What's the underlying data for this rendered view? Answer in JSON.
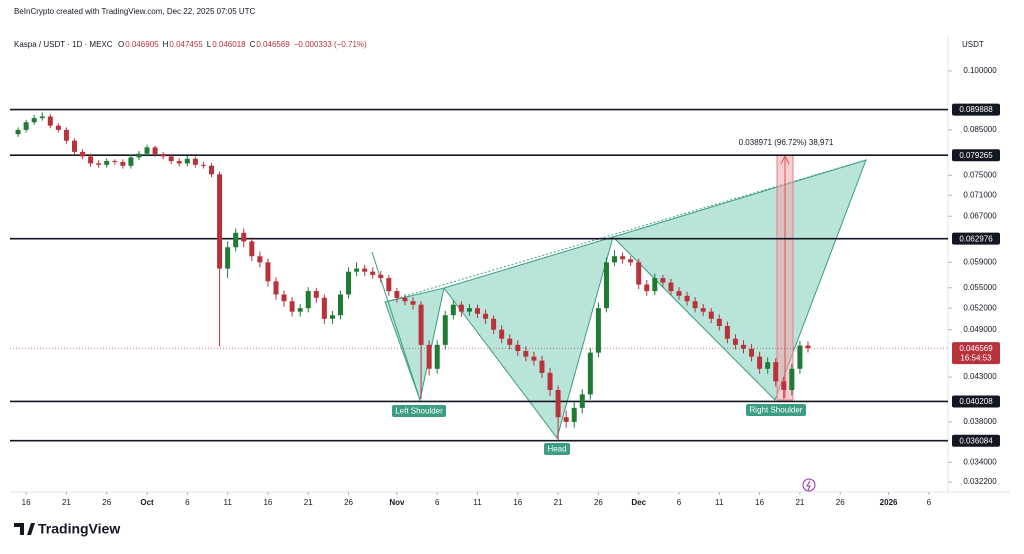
{
  "chart_data": {
    "type": "candlestick",
    "header": "BeInCrypto created with TradingView.com, Dec 22, 2025 07:05 UTC",
    "symbol": "Kaspa / USDT · 1D · MEXC",
    "ohlc_legend": [
      {
        "key": "O",
        "value": "0.046905"
      },
      {
        "key": "H",
        "value": "0.047455"
      },
      {
        "key": "L",
        "value": "0.046018"
      },
      {
        "key": "C",
        "value": "0.046569"
      }
    ],
    "change": "−0.000333 (−0.71%)",
    "y_axis_label": "USDT",
    "logo": "TradingView",
    "countdown": "16:54:53",
    "measure_label": "0.038971 (96.72%) 38,971",
    "pattern_labels": [
      "Left Shoulder",
      "Head",
      "Right Shoulder"
    ],
    "up_color": "#1e7b34",
    "down_color": "#b8323b",
    "log_scale": true,
    "grid": false,
    "x": [
      "2025-09-15",
      "2025-09-16",
      "2025-09-17",
      "2025-09-18",
      "2025-09-19",
      "2025-09-20",
      "2025-09-21",
      "2025-09-22",
      "2025-09-23",
      "2025-09-24",
      "2025-09-25",
      "2025-09-26",
      "2025-09-27",
      "2025-09-28",
      "2025-09-29",
      "2025-09-30",
      "2025-10-01",
      "2025-10-02",
      "2025-10-03",
      "2025-10-04",
      "2025-10-05",
      "2025-10-06",
      "2025-10-07",
      "2025-10-08",
      "2025-10-09",
      "2025-10-10",
      "2025-10-11",
      "2025-10-12",
      "2025-10-13",
      "2025-10-14",
      "2025-10-15",
      "2025-10-16",
      "2025-10-17",
      "2025-10-18",
      "2025-10-19",
      "2025-10-20",
      "2025-10-21",
      "2025-10-22",
      "2025-10-23",
      "2025-10-24",
      "2025-10-25",
      "2025-10-26",
      "2025-10-27",
      "2025-10-28",
      "2025-10-29",
      "2025-10-30",
      "2025-10-31",
      "2025-11-01",
      "2025-11-02",
      "2025-11-03",
      "2025-11-04",
      "2025-11-05",
      "2025-11-06",
      "2025-11-07",
      "2025-11-08",
      "2025-11-09",
      "2025-11-10",
      "2025-11-11",
      "2025-11-12",
      "2025-11-13",
      "2025-11-14",
      "2025-11-15",
      "2025-11-16",
      "2025-11-17",
      "2025-11-18",
      "2025-11-19",
      "2025-11-20",
      "2025-11-21",
      "2025-11-22",
      "2025-11-23",
      "2025-11-24",
      "2025-11-25",
      "2025-11-26",
      "2025-11-27",
      "2025-11-28",
      "2025-11-29",
      "2025-11-30",
      "2025-12-01",
      "2025-12-02",
      "2025-12-03",
      "2025-12-04",
      "2025-12-05",
      "2025-12-06",
      "2025-12-07",
      "2025-12-08",
      "2025-12-09",
      "2025-12-10",
      "2025-12-11",
      "2025-12-12",
      "2025-12-13",
      "2025-12-14",
      "2025-12-15",
      "2025-12-16",
      "2025-12-17",
      "2025-12-18",
      "2025-12-19",
      "2025-12-20",
      "2025-12-21",
      "2025-12-22"
    ],
    "open": [
      0.084,
      0.085,
      0.0868,
      0.0878,
      0.0882,
      0.086,
      0.085,
      0.0825,
      0.08,
      0.079,
      0.0775,
      0.0772,
      0.078,
      0.0778,
      0.077,
      0.0788,
      0.0796,
      0.081,
      0.0795,
      0.079,
      0.078,
      0.0775,
      0.0785,
      0.0772,
      0.077,
      0.0752,
      0.058,
      0.0615,
      0.064,
      0.0625,
      0.06,
      0.059,
      0.056,
      0.054,
      0.053,
      0.0515,
      0.052,
      0.0545,
      0.0535,
      0.0505,
      0.051,
      0.054,
      0.0575,
      0.058,
      0.0575,
      0.057,
      0.0565,
      0.0545,
      0.0535,
      0.053,
      0.0525,
      0.047,
      0.044,
      0.047,
      0.051,
      0.0525,
      0.0515,
      0.052,
      0.0512,
      0.0505,
      0.049,
      0.0478,
      0.047,
      0.0462,
      0.0455,
      0.045,
      0.0435,
      0.0415,
      0.0385,
      0.038,
      0.0395,
      0.041,
      0.046,
      0.052,
      0.059,
      0.06,
      0.0595,
      0.059,
      0.0555,
      0.0545,
      0.0565,
      0.0558,
      0.0545,
      0.0538,
      0.053,
      0.052,
      0.0515,
      0.0505,
      0.0495,
      0.0478,
      0.047,
      0.0465,
      0.0455,
      0.044,
      0.0448,
      0.0425,
      0.0415,
      0.044,
      0.046905
    ],
    "high": [
      0.0856,
      0.0874,
      0.0886,
      0.0892,
      0.0888,
      0.0866,
      0.0856,
      0.083,
      0.0806,
      0.0796,
      0.0782,
      0.0786,
      0.0784,
      0.0784,
      0.0794,
      0.0802,
      0.0816,
      0.0814,
      0.08,
      0.0796,
      0.0786,
      0.0791,
      0.079,
      0.0778,
      0.0776,
      0.0758,
      0.0625,
      0.0648,
      0.0648,
      0.0632,
      0.0608,
      0.0596,
      0.0566,
      0.0546,
      0.0536,
      0.0526,
      0.0551,
      0.055,
      0.054,
      0.0516,
      0.0546,
      0.0582,
      0.059,
      0.0586,
      0.0582,
      0.0576,
      0.057,
      0.055,
      0.054,
      0.0536,
      0.053,
      0.0476,
      0.0476,
      0.0516,
      0.0532,
      0.053,
      0.0526,
      0.0525,
      0.0518,
      0.051,
      0.0496,
      0.0484,
      0.0476,
      0.0468,
      0.0461,
      0.0456,
      0.0441,
      0.042,
      0.0392,
      0.0401,
      0.0416,
      0.0466,
      0.0528,
      0.0598,
      0.061,
      0.0606,
      0.06,
      0.0596,
      0.0562,
      0.0572,
      0.057,
      0.0564,
      0.0551,
      0.0544,
      0.0536,
      0.0526,
      0.052,
      0.0511,
      0.0501,
      0.0484,
      0.0476,
      0.0471,
      0.0461,
      0.0454,
      0.0453,
      0.043,
      0.0446,
      0.0475,
      0.047455
    ],
    "low": [
      0.0834,
      0.0844,
      0.0862,
      0.0872,
      0.0854,
      0.0844,
      0.0818,
      0.0792,
      0.0784,
      0.0768,
      0.0766,
      0.0766,
      0.0772,
      0.0764,
      0.0764,
      0.0782,
      0.079,
      0.0789,
      0.0784,
      0.0774,
      0.0769,
      0.0769,
      0.0766,
      0.0764,
      0.0746,
      0.0468,
      0.0565,
      0.0608,
      0.0615,
      0.0592,
      0.0582,
      0.0552,
      0.0532,
      0.0522,
      0.0508,
      0.0508,
      0.0514,
      0.0528,
      0.0498,
      0.0498,
      0.0504,
      0.0534,
      0.0568,
      0.0568,
      0.0564,
      0.0558,
      0.0538,
      0.0528,
      0.0524,
      0.0518,
      0.0405,
      0.0432,
      0.0434,
      0.0464,
      0.0504,
      0.0508,
      0.0509,
      0.0506,
      0.0498,
      0.0484,
      0.0472,
      0.0464,
      0.0456,
      0.0449,
      0.0444,
      0.0429,
      0.0408,
      0.0361,
      0.0374,
      0.0374,
      0.0389,
      0.0404,
      0.0454,
      0.0514,
      0.0584,
      0.0588,
      0.0584,
      0.0548,
      0.0538,
      0.0539,
      0.0552,
      0.0539,
      0.0532,
      0.0524,
      0.0514,
      0.0509,
      0.0499,
      0.0489,
      0.0472,
      0.0464,
      0.0459,
      0.0449,
      0.0434,
      0.0434,
      0.0419,
      0.0405,
      0.0409,
      0.0434,
      0.046018
    ],
    "close": [
      0.085,
      0.0868,
      0.0878,
      0.0882,
      0.086,
      0.085,
      0.0825,
      0.08,
      0.079,
      0.0775,
      0.0772,
      0.078,
      0.0778,
      0.077,
      0.0788,
      0.0796,
      0.081,
      0.0795,
      0.079,
      0.078,
      0.0775,
      0.0785,
      0.0772,
      0.077,
      0.0752,
      0.058,
      0.0615,
      0.064,
      0.0625,
      0.06,
      0.059,
      0.056,
      0.054,
      0.053,
      0.0515,
      0.052,
      0.0545,
      0.0535,
      0.0505,
      0.051,
      0.054,
      0.0575,
      0.058,
      0.0575,
      0.057,
      0.0565,
      0.0545,
      0.0535,
      0.053,
      0.0525,
      0.047,
      0.044,
      0.047,
      0.051,
      0.0525,
      0.0515,
      0.052,
      0.0512,
      0.0505,
      0.049,
      0.0478,
      0.047,
      0.0462,
      0.0455,
      0.045,
      0.0435,
      0.0415,
      0.0385,
      0.038,
      0.0395,
      0.041,
      0.046,
      0.052,
      0.059,
      0.06,
      0.0595,
      0.059,
      0.0555,
      0.0545,
      0.0565,
      0.0558,
      0.0545,
      0.0538,
      0.053,
      0.052,
      0.0515,
      0.0505,
      0.0495,
      0.0478,
      0.047,
      0.0465,
      0.0455,
      0.044,
      0.0448,
      0.0425,
      0.0415,
      0.044,
      0.046905,
      0.046569
    ],
    "last_price_label": "0.046569",
    "xlim": [
      "2025-09-14",
      "2026-01-08"
    ],
    "xticks": [
      {
        "value": "2025-09-16",
        "label": "16"
      },
      {
        "value": "2025-09-21",
        "label": "21"
      },
      {
        "value": "2025-09-26",
        "label": "26"
      },
      {
        "value": "2025-10-01",
        "label": "Oct"
      },
      {
        "value": "2025-10-06",
        "label": "6"
      },
      {
        "value": "2025-10-11",
        "label": "11"
      },
      {
        "value": "2025-10-16",
        "label": "16"
      },
      {
        "value": "2025-10-21",
        "label": "21"
      },
      {
        "value": "2025-10-26",
        "label": "26"
      },
      {
        "value": "2025-11-01",
        "label": "Nov"
      },
      {
        "value": "2025-11-06",
        "label": "6"
      },
      {
        "value": "2025-11-11",
        "label": "11"
      },
      {
        "value": "2025-11-16",
        "label": "16"
      },
      {
        "value": "2025-11-21",
        "label": "21"
      },
      {
        "value": "2025-11-26",
        "label": "26"
      },
      {
        "value": "2025-12-01",
        "label": "Dec"
      },
      {
        "value": "2025-12-06",
        "label": "6"
      },
      {
        "value": "2025-12-11",
        "label": "11"
      },
      {
        "value": "2025-12-16",
        "label": "16"
      },
      {
        "value": "2025-12-21",
        "label": "21"
      },
      {
        "value": "2025-12-26",
        "label": "26"
      },
      {
        "value": "2026-01-01",
        "label": "2026"
      },
      {
        "value": "2026-01-06",
        "label": "6"
      }
    ],
    "ylim": [
      0.0315,
      0.1089
    ],
    "yticks": [
      {
        "value": 0.1,
        "label": "0.100000"
      },
      {
        "value": 0.085,
        "label": "0.085000"
      },
      {
        "value": 0.075,
        "label": "0.075000"
      },
      {
        "value": 0.071,
        "label": "0.071000"
      },
      {
        "value": 0.067,
        "label": "0.067000"
      },
      {
        "value": 0.059,
        "label": "0.059000"
      },
      {
        "value": 0.055,
        "label": "0.055000"
      },
      {
        "value": 0.052,
        "label": "0.052000"
      },
      {
        "value": 0.049,
        "label": "0.049000"
      },
      {
        "value": 0.043,
        "label": "0.043000"
      },
      {
        "value": 0.038,
        "label": "0.038000"
      },
      {
        "value": 0.034,
        "label": "0.034000"
      },
      {
        "value": 0.0322,
        "label": "0.032200"
      }
    ],
    "levels": [
      {
        "value": 0.089888,
        "label": "0.089888"
      },
      {
        "value": 0.079265,
        "label": "0.079265"
      },
      {
        "value": 0.062976,
        "label": "0.062976"
      },
      {
        "value": 0.040208,
        "label": "0.040208"
      },
      {
        "value": 0.036084,
        "label": "0.036084"
      }
    ]
  }
}
